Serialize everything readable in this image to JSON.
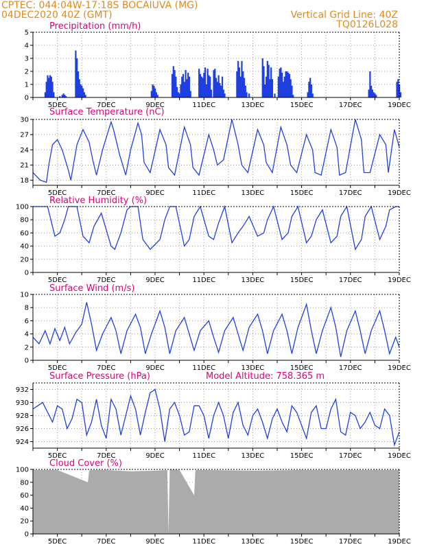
{
  "header": {
    "line1": "CPTEC:    044:04W-17:18S    BOCAIUVA (MG)",
    "line2": "04DEC2020  40Z (GMT)",
    "grid_line": "Vertical Grid Line: 40Z",
    "code": "TQ0126L028"
  },
  "colors": {
    "header": "#e08a1e",
    "title": "#e0007a",
    "series": "#1f3fe0",
    "cloud": "#ababab"
  },
  "x_axis": {
    "start_day": 4.0,
    "end_day": 19.0,
    "labels": [
      "5DEC",
      "7DEC",
      "9DEC",
      "11DEC",
      "13DEC",
      "15DEC",
      "17DEC",
      "19DEC"
    ],
    "label_days": [
      5,
      7,
      9,
      11,
      13,
      15,
      17,
      19
    ]
  },
  "chart_data": [
    {
      "type": "bar",
      "id": "precip",
      "title": "Precipitation (mm/h)",
      "ylim": [
        0,
        5
      ],
      "yticks": [
        "0",
        "1",
        "2",
        "3",
        "4",
        "5"
      ],
      "x": [
        4.5,
        4.55,
        4.6,
        4.65,
        4.7,
        4.75,
        4.8,
        4.85,
        5.1,
        5.2,
        5.25,
        5.3,
        5.35,
        5.75,
        5.8,
        5.85,
        5.9,
        5.95,
        6.0,
        6.05,
        6.1,
        6.15,
        8.85,
        8.9,
        8.95,
        9.0,
        9.05,
        9.1,
        9.7,
        9.75,
        9.8,
        9.85,
        9.9,
        9.95,
        10.0,
        10.05,
        10.1,
        10.15,
        10.2,
        10.25,
        10.3,
        10.35,
        10.4,
        10.45,
        10.8,
        10.85,
        10.9,
        10.95,
        11.0,
        11.05,
        11.1,
        11.15,
        11.2,
        11.25,
        11.3,
        11.4,
        11.45,
        11.5,
        11.55,
        11.6,
        11.65,
        11.7,
        11.75,
        11.8,
        11.85,
        12.35,
        12.4,
        12.45,
        12.5,
        12.55,
        12.6,
        12.65,
        12.7,
        12.75,
        12.85,
        13.4,
        13.45,
        13.5,
        13.55,
        13.6,
        13.65,
        13.7,
        13.75,
        13.8,
        13.9,
        14.05,
        14.1,
        14.15,
        14.2,
        14.25,
        14.3,
        14.35,
        14.4,
        14.45,
        14.5,
        14.55,
        14.6,
        14.65,
        15.25,
        15.3,
        15.35,
        15.4,
        15.45,
        17.75,
        17.8,
        17.85,
        17.9,
        17.95,
        18.0,
        18.05,
        18.9,
        18.95,
        19.0,
        19.05
      ],
      "values": [
        0.4,
        1.2,
        1.7,
        1.5,
        1.7,
        1.6,
        1.2,
        0.4,
        0.1,
        0.2,
        0.3,
        0.2,
        0.1,
        3.6,
        3.0,
        2.0,
        1.4,
        1.0,
        0.9,
        0.7,
        0.4,
        0.2,
        0.5,
        1.0,
        0.9,
        0.7,
        0.4,
        0.2,
        1.8,
        2.4,
        2.1,
        1.6,
        0.8,
        0.4,
        0.3,
        1.0,
        1.6,
        1.8,
        1.2,
        2.1,
        1.4,
        1.9,
        1.6,
        0.5,
        2.2,
        1.8,
        1.6,
        1.5,
        1.9,
        2.3,
        1.0,
        2.2,
        1.7,
        1.6,
        0.6,
        2.1,
        2.2,
        1.5,
        1.2,
        1.7,
        1.1,
        0.9,
        1.6,
        0.6,
        0.3,
        2.0,
        2.8,
        2.3,
        1.6,
        2.8,
        2.0,
        1.5,
        0.9,
        0.4,
        0.3,
        3.0,
        2.4,
        1.0,
        1.6,
        2.8,
        2.5,
        1.4,
        2.3,
        1.4,
        0.3,
        1.6,
        2.2,
        2.3,
        1.9,
        1.2,
        1.6,
        2.0,
        2.0,
        1.9,
        1.8,
        1.4,
        0.9,
        0.2,
        0.4,
        1.2,
        1.5,
        1.0,
        0.3,
        0.6,
        2.0,
        0.9,
        0.6,
        0.4,
        0.3,
        0.2,
        1.2,
        1.4,
        1.0,
        0.4
      ]
    },
    {
      "type": "line",
      "id": "temp",
      "title": "Surface Temperature (nC)",
      "ylim": [
        17,
        30
      ],
      "yticks": [
        "18",
        "21",
        "24",
        "27",
        "30"
      ],
      "x": [
        4.0,
        4.3,
        4.55,
        4.65,
        4.8,
        5.0,
        5.2,
        5.45,
        5.55,
        5.8,
        6.05,
        6.3,
        6.45,
        6.6,
        6.85,
        7.2,
        7.3,
        7.55,
        7.8,
        8.0,
        8.3,
        8.45,
        8.55,
        8.8,
        9.2,
        9.45,
        9.55,
        9.8,
        10.2,
        10.45,
        10.55,
        10.8,
        11.2,
        11.4,
        11.55,
        11.8,
        12.15,
        12.4,
        12.55,
        12.8,
        13.2,
        13.45,
        13.55,
        13.8,
        14.15,
        14.4,
        14.55,
        14.8,
        15.2,
        15.45,
        15.55,
        15.8,
        16.2,
        16.45,
        16.55,
        16.8,
        17.2,
        17.45,
        17.55,
        17.8,
        18.2,
        18.45,
        18.55,
        18.8,
        19.0
      ],
      "values": [
        19.5,
        18.0,
        17.6,
        21.0,
        25.0,
        26.0,
        24.0,
        20.0,
        18.0,
        25.0,
        28.0,
        25.5,
        22.0,
        19.0,
        24.0,
        29.5,
        28.0,
        23.0,
        19.0,
        24.0,
        29.3,
        27.0,
        21.5,
        19.5,
        28.0,
        25.0,
        20.5,
        19.0,
        28.5,
        25.0,
        20.5,
        19.0,
        27.0,
        24.0,
        21.0,
        22.0,
        30.0,
        25.0,
        21.0,
        19.5,
        28.0,
        25.0,
        21.5,
        19.5,
        28.5,
        25.0,
        21.0,
        19.5,
        27.0,
        24.0,
        19.5,
        19.0,
        28.0,
        24.5,
        19.0,
        19.5,
        30.0,
        26.0,
        19.5,
        19.5,
        27.0,
        25.0,
        19.5,
        28.0,
        24.5
      ]
    },
    {
      "type": "line",
      "id": "rh",
      "title": "Relative Humidity (%)",
      "ylim": [
        0,
        100
      ],
      "yticks": [
        "0",
        "20",
        "40",
        "60",
        "80",
        "100"
      ],
      "x": [
        4.0,
        4.3,
        4.6,
        4.9,
        5.1,
        5.3,
        5.45,
        5.8,
        6.05,
        6.3,
        6.5,
        6.8,
        7.2,
        7.35,
        7.6,
        7.85,
        8.0,
        8.3,
        8.5,
        8.8,
        9.2,
        9.4,
        9.6,
        9.85,
        10.2,
        10.4,
        10.6,
        10.85,
        11.2,
        11.4,
        11.6,
        11.85,
        12.15,
        12.4,
        12.6,
        12.85,
        13.2,
        13.45,
        13.6,
        13.85,
        14.2,
        14.45,
        14.6,
        14.85,
        15.2,
        15.4,
        15.6,
        15.85,
        16.2,
        16.45,
        16.6,
        16.85,
        17.2,
        17.45,
        17.6,
        17.85,
        18.2,
        18.45,
        18.6,
        18.85,
        19.0
      ],
      "values": [
        100,
        100,
        100,
        55,
        60,
        80,
        100,
        100,
        55,
        45,
        70,
        90,
        40,
        35,
        60,
        95,
        100,
        100,
        50,
        35,
        50,
        80,
        100,
        100,
        40,
        50,
        85,
        100,
        55,
        50,
        75,
        100,
        45,
        60,
        70,
        85,
        55,
        60,
        80,
        100,
        50,
        60,
        85,
        100,
        45,
        55,
        80,
        95,
        45,
        55,
        85,
        100,
        35,
        50,
        85,
        100,
        50,
        70,
        95,
        100,
        100
      ]
    },
    {
      "type": "line",
      "id": "wind",
      "title": "Surface Wind (m/s)",
      "ylim": [
        0,
        10
      ],
      "yticks": [
        "0",
        "2",
        "4",
        "6",
        "8",
        "10"
      ],
      "x": [
        4.0,
        4.25,
        4.5,
        4.7,
        4.9,
        5.1,
        5.3,
        5.5,
        5.75,
        6.0,
        6.2,
        6.4,
        6.6,
        6.85,
        7.2,
        7.4,
        7.6,
        7.85,
        8.2,
        8.4,
        8.6,
        8.85,
        9.2,
        9.4,
        9.6,
        9.85,
        10.2,
        10.4,
        10.6,
        10.85,
        11.2,
        11.4,
        11.6,
        11.85,
        12.2,
        12.4,
        12.6,
        12.85,
        13.2,
        13.4,
        13.6,
        13.85,
        14.2,
        14.4,
        14.6,
        14.85,
        15.2,
        15.4,
        15.6,
        15.85,
        16.2,
        16.4,
        16.6,
        16.85,
        17.2,
        17.4,
        17.6,
        17.85,
        18.2,
        18.4,
        18.6,
        18.85,
        19.0
      ],
      "values": [
        3.5,
        2.5,
        4.5,
        2.5,
        4.8,
        3.0,
        5.0,
        2.5,
        4.2,
        5.5,
        8.8,
        5.5,
        1.5,
        4.0,
        6.5,
        4.5,
        1.0,
        4.5,
        7.0,
        5.0,
        1.0,
        4.0,
        7.5,
        5.0,
        1.0,
        4.5,
        6.5,
        4.0,
        1.5,
        4.5,
        6.0,
        3.5,
        1.2,
        4.5,
        6.5,
        4.0,
        1.5,
        5.0,
        7.0,
        4.5,
        1.0,
        4.5,
        7.0,
        4.5,
        1.0,
        5.0,
        8.5,
        4.5,
        1.0,
        4.5,
        8.0,
        5.0,
        0.5,
        4.5,
        7.5,
        4.5,
        1.0,
        4.5,
        7.5,
        4.5,
        1.0,
        3.5,
        2.0
      ]
    },
    {
      "type": "line",
      "id": "press",
      "title": "Surface Pressure (hPa)",
      "extra": "Model Altitude: 758.365 m",
      "ylim": [
        923,
        933
      ],
      "yticks": [
        "924",
        "926",
        "928",
        "930",
        "932"
      ],
      "x": [
        4.0,
        4.2,
        4.4,
        4.6,
        4.8,
        5.0,
        5.2,
        5.4,
        5.6,
        5.8,
        6.0,
        6.2,
        6.4,
        6.6,
        6.8,
        7.0,
        7.2,
        7.4,
        7.6,
        7.8,
        8.0,
        8.2,
        8.4,
        8.6,
        8.8,
        9.0,
        9.2,
        9.4,
        9.6,
        9.8,
        10.0,
        10.2,
        10.4,
        10.6,
        10.8,
        11.0,
        11.2,
        11.4,
        11.6,
        11.8,
        12.0,
        12.2,
        12.4,
        12.6,
        12.8,
        13.0,
        13.2,
        13.4,
        13.6,
        13.8,
        14.0,
        14.2,
        14.4,
        14.6,
        14.8,
        15.0,
        15.2,
        15.4,
        15.6,
        15.8,
        16.0,
        16.2,
        16.4,
        16.6,
        16.8,
        17.0,
        17.2,
        17.4,
        17.6,
        17.8,
        18.0,
        18.2,
        18.4,
        18.6,
        18.8,
        19.0
      ],
      "values": [
        929,
        929.5,
        930,
        928.5,
        927,
        929.5,
        929,
        926,
        927.5,
        930.5,
        930,
        925,
        927,
        930.5,
        926.5,
        924.5,
        930.5,
        929,
        925,
        928,
        931,
        929,
        925,
        928.5,
        931.5,
        932,
        929,
        924,
        929,
        930,
        928,
        925,
        925.5,
        929.5,
        929.5,
        928,
        924.5,
        928,
        930,
        928,
        924.5,
        928.5,
        930,
        926.5,
        925,
        928,
        929,
        927,
        924.5,
        927.5,
        929,
        927,
        925.5,
        929.5,
        928.5,
        926.5,
        924.5,
        928.5,
        929.5,
        926,
        926,
        929,
        930.5,
        925.5,
        925,
        928.5,
        928,
        926,
        927,
        928.5,
        926.5,
        926,
        929,
        928,
        923.5,
        925.5
      ]
    },
    {
      "type": "area",
      "id": "cloud",
      "title": "Cloud Cover (%)",
      "ylim": [
        0,
        100
      ],
      "yticks": [
        "0",
        "20",
        "40",
        "60",
        "80",
        "100"
      ],
      "x": [
        4.0,
        5.0,
        6.25,
        6.3,
        6.35,
        7.0,
        8.0,
        9.0,
        9.5,
        9.55,
        9.6,
        10.0,
        10.6,
        10.65,
        10.7,
        11.0,
        13.0,
        15.0,
        17.0,
        19.0
      ],
      "values": [
        99,
        99,
        80,
        98,
        99,
        99,
        97,
        98,
        99,
        0,
        100,
        99,
        60,
        98,
        99,
        99,
        98,
        99,
        99,
        99
      ]
    }
  ]
}
